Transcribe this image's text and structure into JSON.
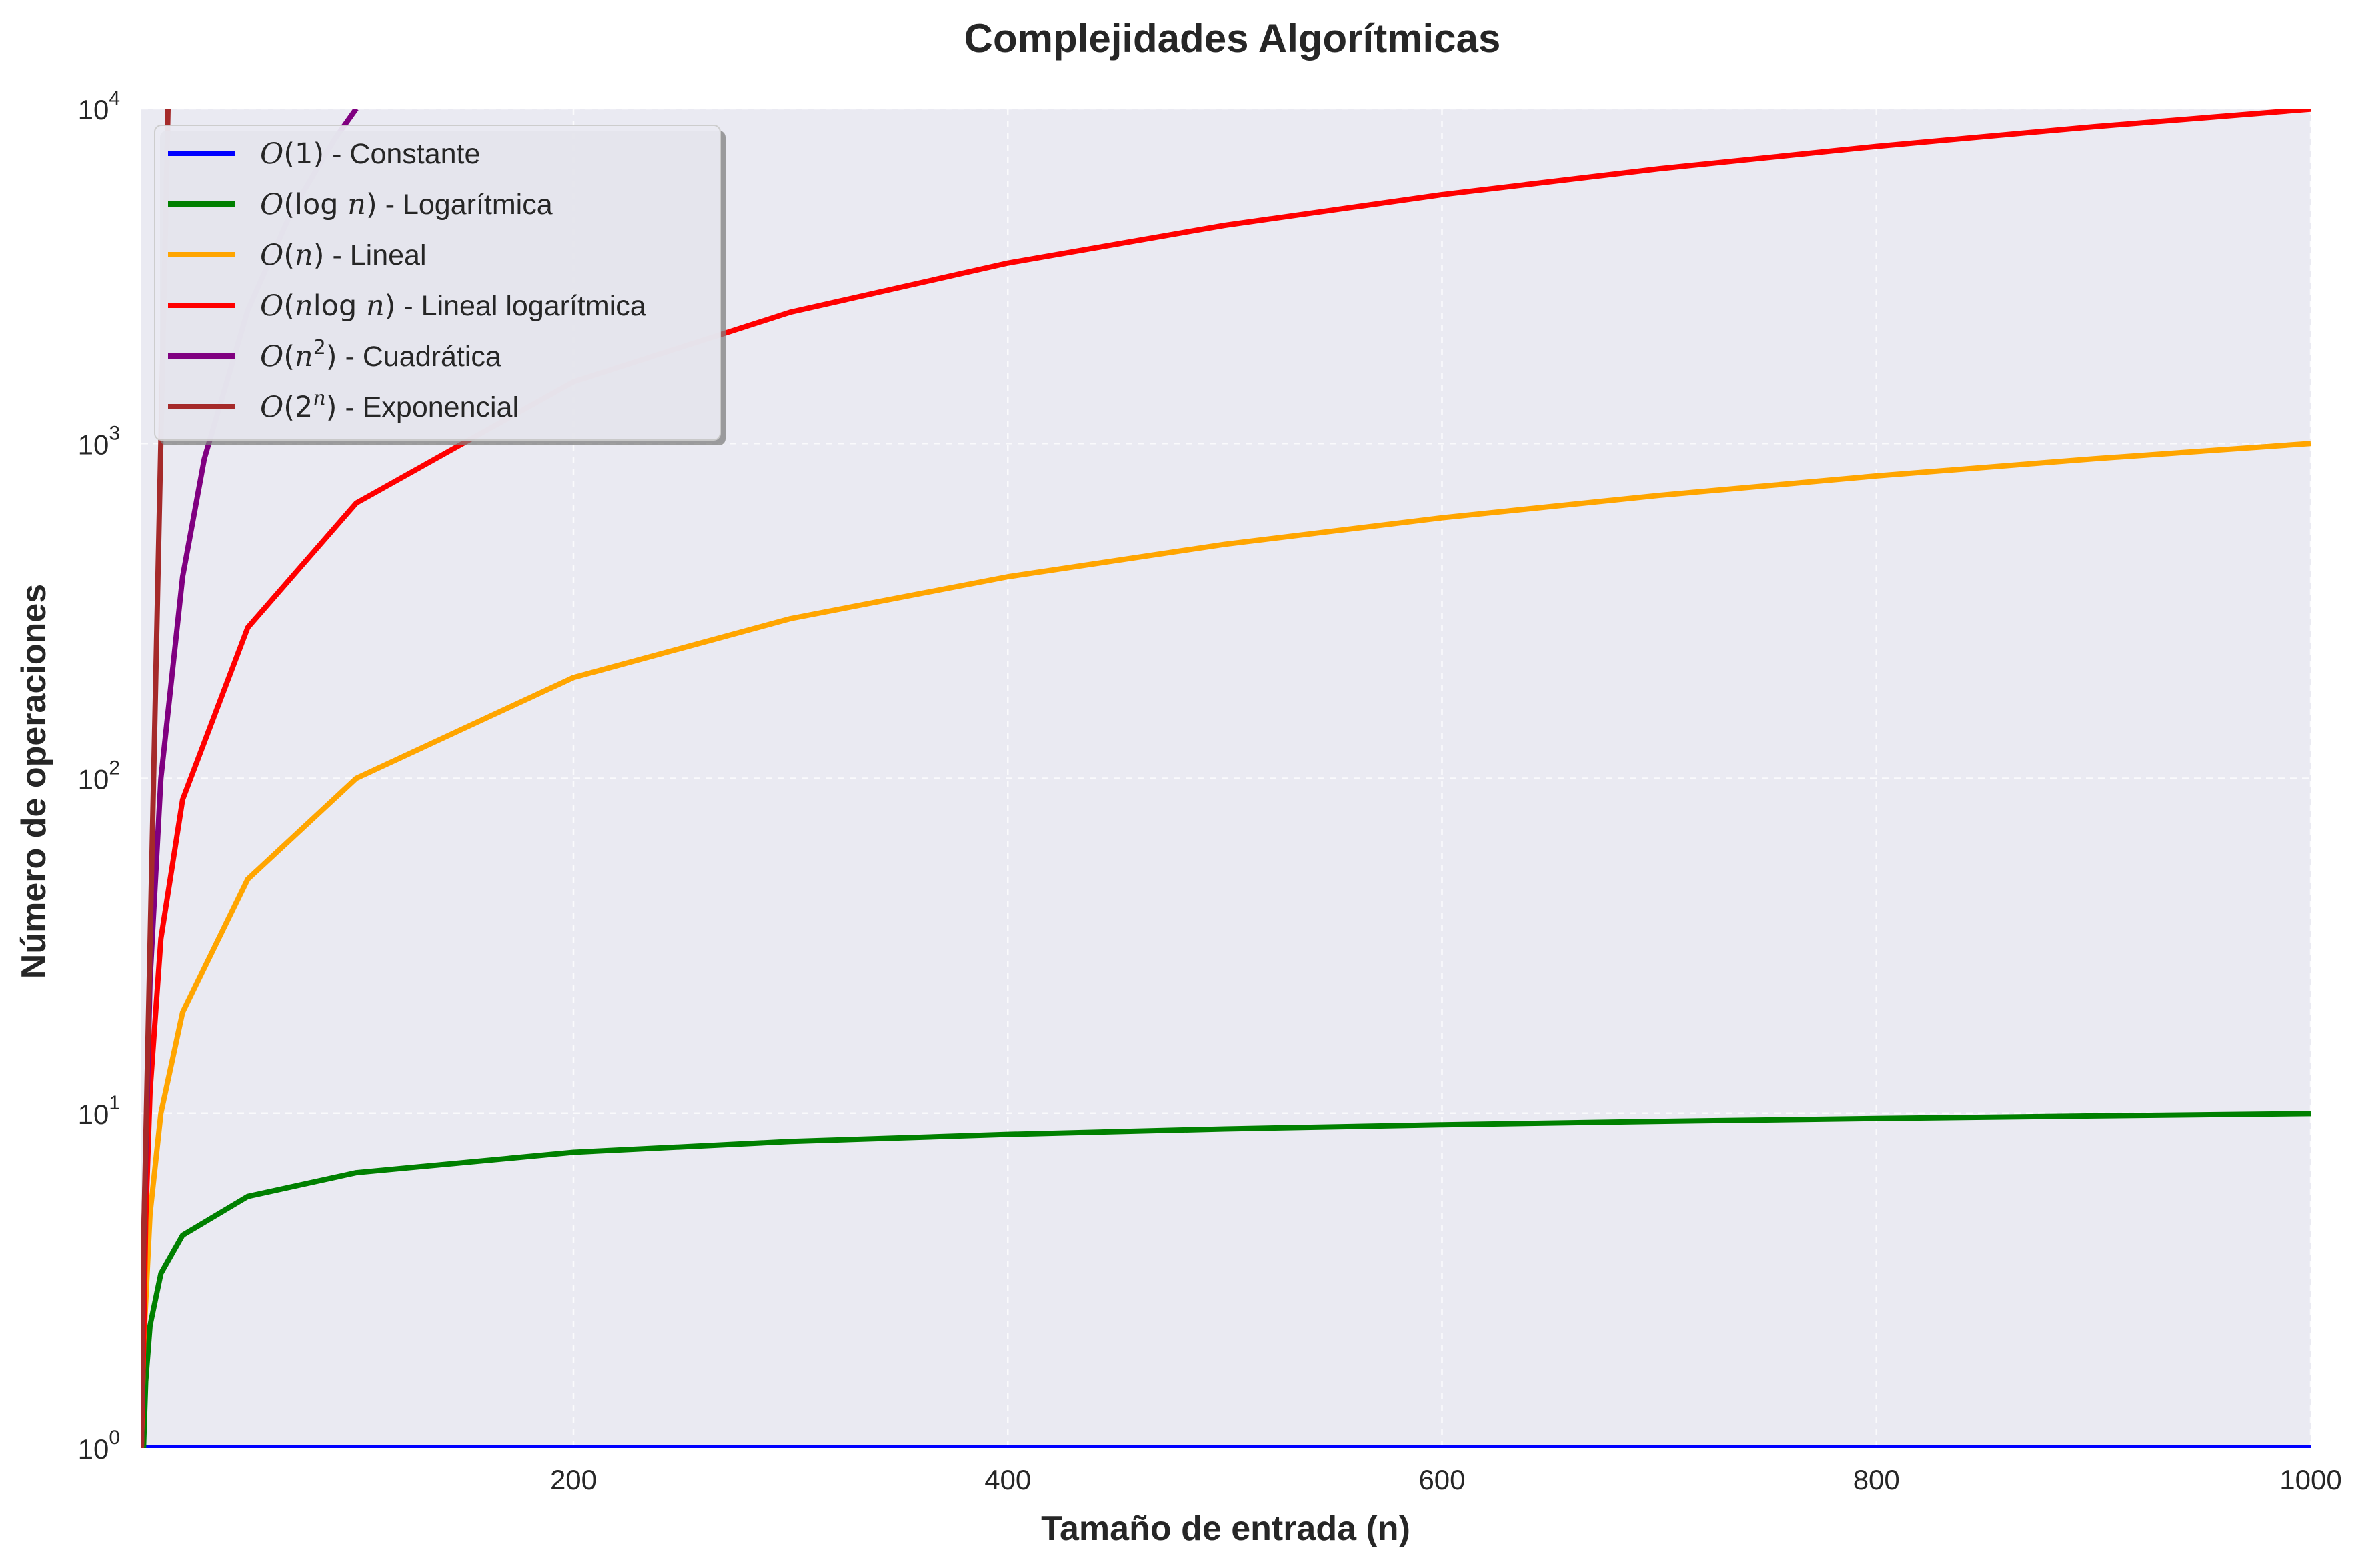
{
  "chart_data": {
    "type": "line",
    "title": "Complejidades Algorítmicas",
    "xlabel": "Tamaño de entrada (n)",
    "ylabel": "Número de operaciones",
    "xlim": [
      1,
      1000
    ],
    "ylim": [
      1,
      10000
    ],
    "yscale": "log",
    "grid": true,
    "legend_position": "top-left",
    "x_ticks": [
      {
        "value": 200,
        "label": "200"
      },
      {
        "value": 400,
        "label": "400"
      },
      {
        "value": 600,
        "label": "600"
      },
      {
        "value": 800,
        "label": "800"
      },
      {
        "value": 1000,
        "label": "1000"
      }
    ],
    "y_ticks": [
      {
        "value": 1,
        "base": "10",
        "exp": "0"
      },
      {
        "value": 10,
        "base": "10",
        "exp": "1"
      },
      {
        "value": 100,
        "base": "10",
        "exp": "2"
      },
      {
        "value": 1000,
        "base": "10",
        "exp": "3"
      },
      {
        "value": 10000,
        "base": "10",
        "exp": "4"
      }
    ],
    "background_color": "#eaeaf2",
    "series": [
      {
        "name": "O(1) - Constante",
        "color": "#0000ff",
        "x": [
          1,
          100,
          200,
          300,
          400,
          500,
          600,
          700,
          800,
          900,
          1000
        ],
        "y": [
          1,
          1,
          1,
          1,
          1,
          1,
          1,
          1,
          1,
          1,
          1
        ]
      },
      {
        "name": "O(log n) - Logarítmica",
        "color": "#008000",
        "x": [
          1,
          2,
          3,
          5,
          10,
          20,
          50,
          100,
          200,
          300,
          400,
          500,
          600,
          700,
          800,
          900,
          1000
        ],
        "y": [
          1,
          1.0,
          1.58,
          2.32,
          3.32,
          4.32,
          5.64,
          6.64,
          7.64,
          8.23,
          8.64,
          8.97,
          9.23,
          9.45,
          9.64,
          9.81,
          9.97
        ]
      },
      {
        "name": "O(n) - Lineal",
        "color": "#ffa500",
        "x": [
          1,
          2,
          5,
          10,
          20,
          50,
          100,
          200,
          300,
          400,
          500,
          600,
          700,
          800,
          900,
          1000
        ],
        "y": [
          1,
          2,
          5,
          10,
          20,
          50,
          100,
          200,
          300,
          400,
          500,
          600,
          700,
          800,
          900,
          1000
        ]
      },
      {
        "name": "O(n log n) - Lineal logarítmica",
        "color": "#ff0000",
        "x": [
          1,
          2,
          3,
          5,
          10,
          20,
          50,
          100,
          200,
          300,
          400,
          500,
          600,
          700,
          800,
          900,
          1000
        ],
        "y": [
          1,
          2,
          4.75,
          11.6,
          33.2,
          86.4,
          282,
          664,
          1529,
          2469,
          3458,
          4483,
          5537,
          6616,
          7715,
          8832,
          9966
        ]
      },
      {
        "name": "O(n²) - Cuadrática",
        "color": "#800080",
        "x": [
          1,
          2,
          5,
          10,
          20,
          30,
          50,
          70,
          90,
          100
        ],
        "y": [
          1,
          4,
          25,
          100,
          400,
          900,
          2500,
          4900,
          8100,
          10000
        ]
      },
      {
        "name": "O(2ⁿ) - Exponencial",
        "color": "#a52a2a",
        "x": [
          1,
          2,
          3,
          4,
          5,
          6,
          7,
          8,
          9,
          10,
          11,
          12,
          13,
          14
        ],
        "y": [
          1,
          4,
          8,
          16,
          32,
          64,
          128,
          256,
          512,
          1024,
          2048,
          4096,
          8192,
          16384
        ]
      }
    ]
  },
  "legend": {
    "items": [
      {
        "pre": "O(",
        "arg": "1",
        "arg_italic": false,
        "post": ")",
        "sup": "",
        "desc": " - Constante",
        "color": "#0000ff"
      },
      {
        "pre": "O(",
        "arg": "log ",
        "arg_italic": false,
        "var": "n",
        "post": ")",
        "sup": "",
        "desc": " - Logarítmica",
        "color": "#008000"
      },
      {
        "pre": "O(",
        "arg": "",
        "var": "n",
        "post": ")",
        "sup": "",
        "desc": " - Lineal",
        "color": "#ffa500"
      },
      {
        "pre": "O(",
        "arg": "",
        "var": "n",
        "mid": "log ",
        "var2": "n",
        "post": ")",
        "sup": "",
        "desc": " - Lineal logarítmica",
        "color": "#ff0000"
      },
      {
        "pre": "O(",
        "arg": "",
        "var": "n",
        "post": ")",
        "sup": "2",
        "desc": " - Cuadrática",
        "color": "#800080"
      },
      {
        "pre": "O(",
        "arg": "2",
        "var": "",
        "post": ")",
        "sup": "n",
        "desc": " - Exponencial",
        "color": "#a52a2a"
      }
    ]
  }
}
